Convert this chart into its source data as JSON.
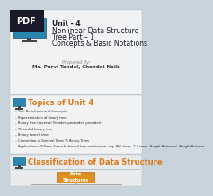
{
  "bg_color": "#c8d4dc",
  "slide1_bg": "#f0f2f4",
  "slide2_bg": "#f0f2f4",
  "slide3_bg": "#e8eaec",
  "pdf_badge_color": "#1a1a2a",
  "pdf_text_color": "#ffffff",
  "monitor_screen_color": "#2a85b0",
  "monitor_dark_color": "#1a5070",
  "monitor_stand_color": "#444444",
  "monitor_base_color": "#444444",
  "title_lines": [
    "Unit - 4",
    "Nonlinear Data Structure",
    "Tree Part – 1",
    "Concepts & Basic Notations"
  ],
  "title_color": "#1a1a2a",
  "divider_color": "#90b0c0",
  "prepared_label": "Prepared By:",
  "prepared_name": "Ms. Purvi Tandel, Chandni Naik",
  "prepared_label_color": "#888888",
  "prepared_name_color": "#333333",
  "section1_title": "Topics of Unit 4",
  "section1_title_color": "#e07818",
  "topics": [
    "Tree Definitions and Concepts",
    "Representation of binary tree",
    "Binary tree traversal (Inorder, postorder, preorder)",
    "Threaded binary tree",
    "Binary search trees",
    "Conversion of General Trees To Binary Trees",
    "Applications Of Trees-Some balanced tree mechanism, e.g. AVL trees, 2-3 trees, Height Balanced, Weight Balance"
  ],
  "topics_color": "#222222",
  "section2_title": "Classification of Data Structure",
  "section2_title_color": "#e07818",
  "ds_box_color": "#e09020",
  "ds_box_text": "Data\nStructures",
  "ds_box_text_color": "#ffffff",
  "line_color": "#888888"
}
